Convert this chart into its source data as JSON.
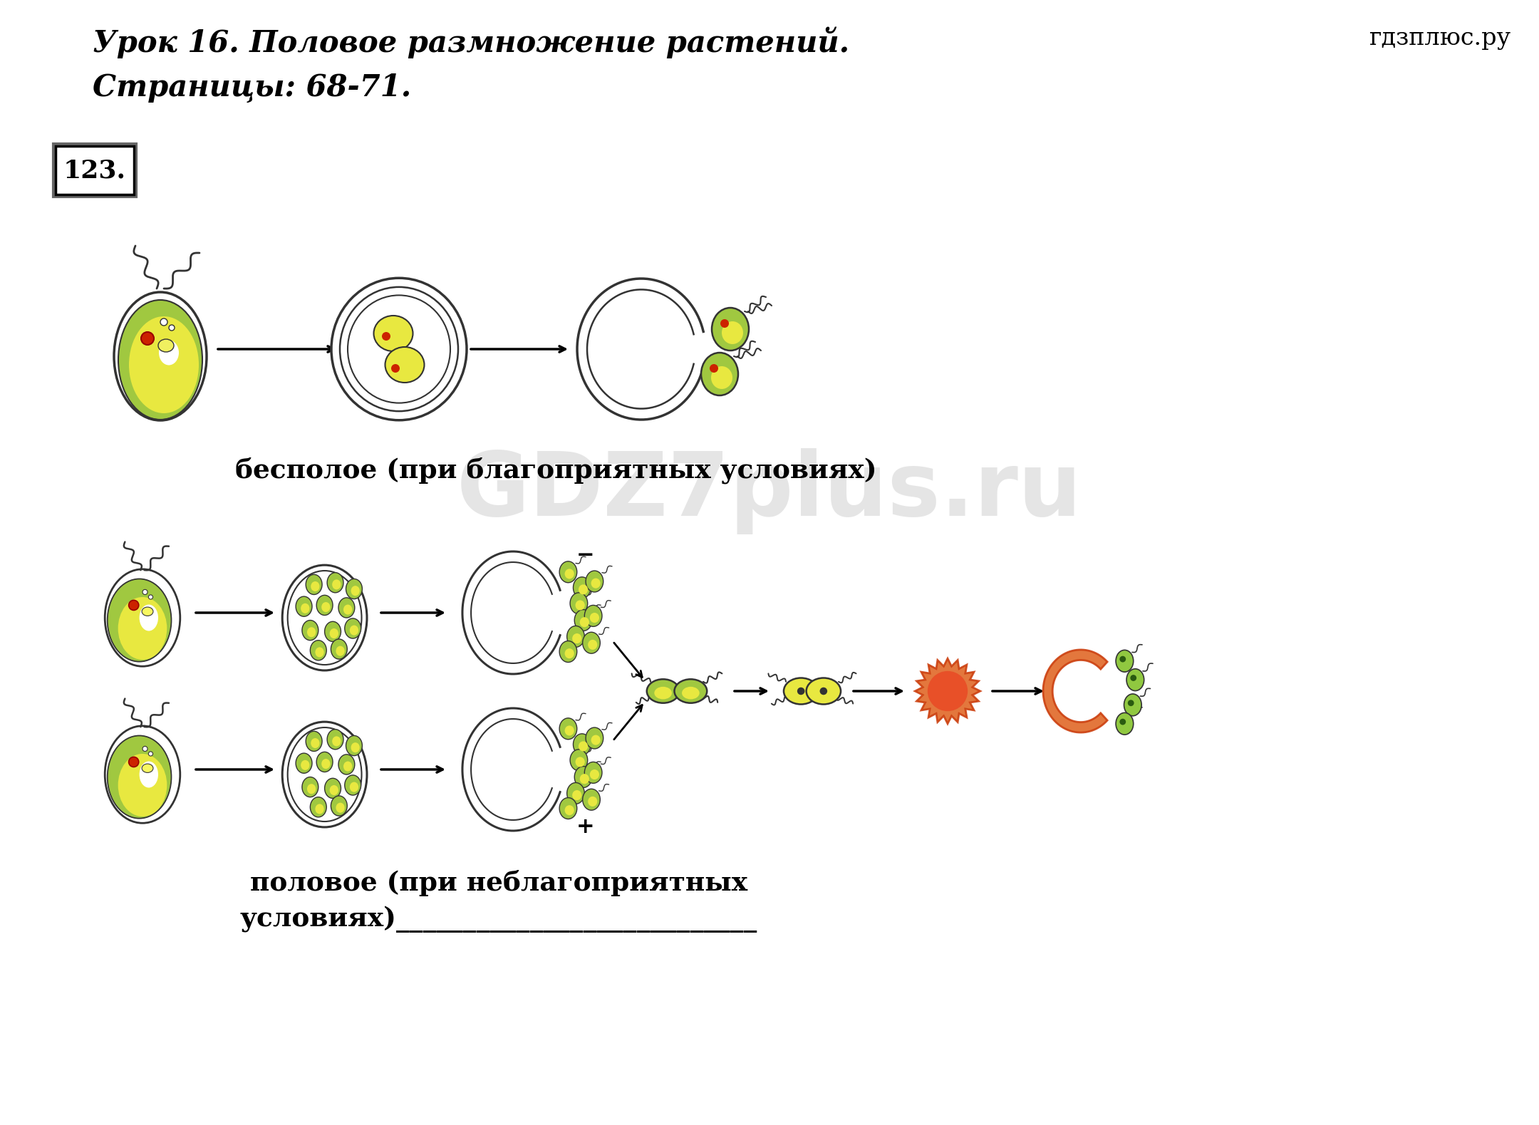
{
  "title_line1": "Урок 16. Половое размножение растений.",
  "title_line2": "Страницы: 68-71.",
  "watermark2": "гдзплюс.ру",
  "label_123": "123.",
  "label_asexual": "бесполое (при благоприятных условиях)",
  "label_sexual": "половое (при неблагоприятных",
  "label_sexual2": "условиях)___________________________",
  "bg_color": "#ffffff",
  "text_color": "#000000",
  "cell_outline": "#333333",
  "yellow_fill": "#e8e840",
  "yellow_fill2": "#d4d820",
  "green_fill": "#90c030",
  "green_fill2": "#a0c840",
  "dark_green": "#4a7a1e",
  "red_dot": "#cc2200",
  "orange_outer": "#e06828",
  "orange_inner": "#e05818",
  "light_green": "#90c840"
}
